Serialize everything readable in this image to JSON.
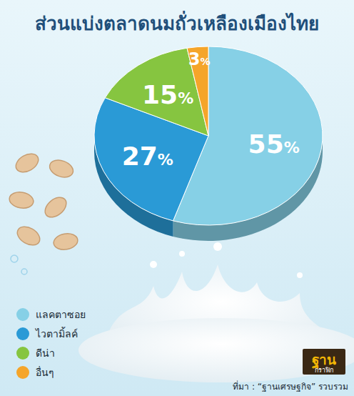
{
  "chart_data": {
    "type": "pie",
    "title": "ส่วนแบ่งตลาดนมถั่วเหลืองเมืองไทย",
    "categories": [
      "แลคตาซอย",
      "ไวตามิ้ลค์",
      "ดีน่า",
      "อื่นๆ"
    ],
    "values": [
      55,
      27,
      15,
      3
    ],
    "value_labels": [
      "55%",
      "27%",
      "15%",
      "3%"
    ],
    "colors": [
      "#86d0e6",
      "#2a9ad6",
      "#86c540",
      "#f5a52a"
    ],
    "data_labels": true,
    "legend": "bottom-left",
    "source": "ที่มา : “ฐานเศรษฐกิจ” รวบรวม",
    "logo_text": [
      "ฐาน",
      "กราฟิก"
    ]
  }
}
